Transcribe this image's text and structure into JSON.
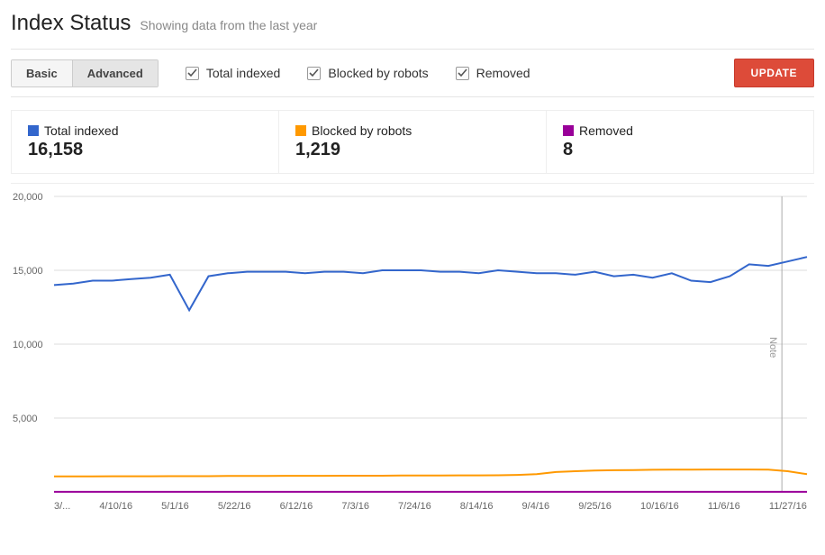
{
  "header": {
    "title": "Index Status",
    "subtitle": "Showing data from the last year"
  },
  "toolbar": {
    "tabs": {
      "basic": "Basic",
      "advanced": "Advanced",
      "active": "advanced"
    },
    "checks": {
      "total_indexed": {
        "label": "Total indexed",
        "checked": true
      },
      "blocked": {
        "label": "Blocked by robots",
        "checked": true
      },
      "removed": {
        "label": "Removed",
        "checked": true
      }
    },
    "update_label": "UPDATE"
  },
  "stats": {
    "total_indexed": {
      "label": "Total indexed",
      "value": "16,158",
      "color": "#3366cc"
    },
    "blocked": {
      "label": "Blocked by robots",
      "value": "1,219",
      "color": "#ff9900"
    },
    "removed": {
      "label": "Removed",
      "value": "8",
      "color": "#990099"
    }
  },
  "chart": {
    "type": "line",
    "background_color": "#ffffff",
    "grid_color": "#dddddd",
    "ylim": [
      0,
      20000
    ],
    "ytick_step": 5000,
    "ytick_labels": [
      "20,000",
      "15,000",
      "10,000",
      "5,000"
    ],
    "label_fontsize": 11,
    "line_width": 2,
    "x_categories": [
      "3/...",
      "4/10/16",
      "5/1/16",
      "5/22/16",
      "6/12/16",
      "7/3/16",
      "7/24/16",
      "8/14/16",
      "9/4/16",
      "9/25/16",
      "10/16/16",
      "11/6/16",
      "11/27/16"
    ],
    "note_marker_x_index": 11.6,
    "note_label": "Note",
    "series": {
      "total_indexed": {
        "color": "#3366cc",
        "values": [
          14000,
          14100,
          14300,
          14300,
          14400,
          14500,
          14700,
          12300,
          14600,
          14800,
          14900,
          14900,
          14900,
          14800,
          14900,
          14900,
          14800,
          15000,
          15000,
          15000,
          14900,
          14900,
          14800,
          15000,
          14900,
          14800,
          14800,
          14700,
          14900,
          14600,
          14700,
          14500,
          14800,
          14300,
          14200,
          14600,
          15400,
          15300,
          15600,
          15900
        ]
      },
      "blocked": {
        "color": "#ff9900",
        "values": [
          1050,
          1050,
          1050,
          1060,
          1060,
          1060,
          1070,
          1070,
          1070,
          1080,
          1080,
          1080,
          1090,
          1090,
          1090,
          1100,
          1100,
          1100,
          1110,
          1110,
          1110,
          1120,
          1120,
          1130,
          1150,
          1200,
          1350,
          1400,
          1450,
          1470,
          1480,
          1500,
          1510,
          1510,
          1520,
          1520,
          1520,
          1510,
          1400,
          1200
        ]
      },
      "removed": {
        "color": "#990099",
        "values": [
          8,
          8,
          8,
          8,
          8,
          8,
          8,
          8,
          8,
          8,
          8,
          8,
          8,
          8,
          8,
          8,
          8,
          8,
          8,
          8,
          8,
          8,
          8,
          8,
          8,
          8,
          8,
          8,
          8,
          8,
          8,
          8,
          8,
          8,
          8,
          8,
          8,
          8,
          8,
          8
        ]
      }
    }
  }
}
